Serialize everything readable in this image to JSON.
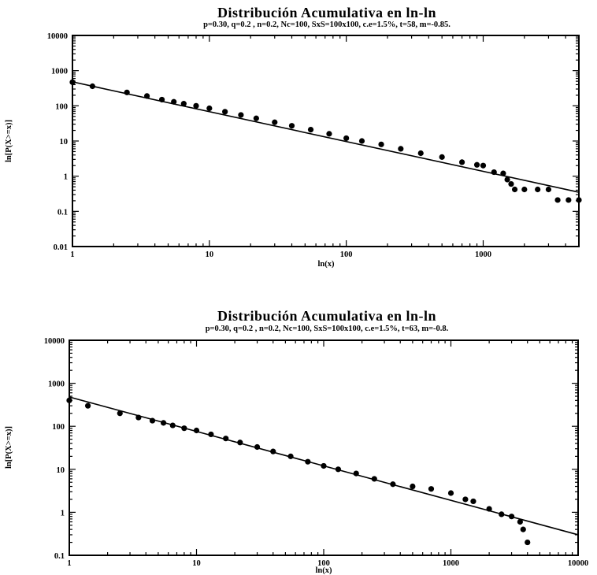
{
  "chart_data": [
    {
      "type": "scatter",
      "title": "Distribución Acumulativa en ln-ln",
      "subtitle": "p=0.30, q=0.2 , n=0.2, Nc=100, SxS=100x100, c.e=1.5%, t=58, m=-0.85.",
      "xlabel": "ln(x)",
      "ylabel": "ln[P(X>=x)]",
      "x_scale": "log",
      "y_scale": "log",
      "xlim": [
        1,
        5000
      ],
      "ylim": [
        0.01,
        10000
      ],
      "x_ticks": [
        1,
        10,
        100,
        1000
      ],
      "x_tick_labels": [
        "1",
        "10",
        "100",
        "1000"
      ],
      "y_ticks": [
        0.01,
        0.1,
        1,
        10,
        100,
        1000,
        10000
      ],
      "y_tick_labels": [
        "0.01",
        "0.1",
        "1",
        "10",
        "100",
        "1000",
        "10000"
      ],
      "grid": false,
      "legend": "none",
      "fit_line": {
        "slope": -0.85,
        "points": [
          [
            1,
            480
          ],
          [
            5000,
            0.35
          ]
        ]
      },
      "series": [
        {
          "points": [
            [
              1,
              470
            ],
            [
              1.4,
              360
            ],
            [
              2.5,
              240
            ],
            [
              3.5,
              190
            ],
            [
              4.5,
              150
            ],
            [
              5.5,
              130
            ],
            [
              6.5,
              115
            ],
            [
              8,
              100
            ],
            [
              10,
              85
            ],
            [
              13,
              68
            ],
            [
              17,
              55
            ],
            [
              22,
              44
            ],
            [
              30,
              34
            ],
            [
              40,
              27
            ],
            [
              55,
              21
            ],
            [
              75,
              16
            ],
            [
              100,
              12
            ],
            [
              130,
              10
            ],
            [
              180,
              8
            ],
            [
              250,
              6
            ],
            [
              350,
              4.5
            ],
            [
              500,
              3.5
            ],
            [
              700,
              2.5
            ],
            [
              900,
              2.1
            ],
            [
              1000,
              2
            ],
            [
              1200,
              1.3
            ],
            [
              1400,
              1.2
            ],
            [
              1500,
              0.8
            ],
            [
              1600,
              0.6
            ],
            [
              1700,
              0.42
            ],
            [
              2000,
              0.42
            ],
            [
              2500,
              0.42
            ],
            [
              3000,
              0.42
            ],
            [
              3500,
              0.21
            ],
            [
              4200,
              0.21
            ],
            [
              5000,
              0.21
            ]
          ]
        }
      ]
    },
    {
      "type": "scatter",
      "title": "Distribución Acumulativa en ln-ln",
      "subtitle": "p=0.30, q=0.2 , n=0.2, Nc=100, SxS=100x100, c.e=1.5%, t=63, m=-0.8.",
      "xlabel": "ln(x)",
      "ylabel": "ln[P(X>=x)]",
      "x_scale": "log",
      "y_scale": "log",
      "xlim": [
        1,
        10000
      ],
      "ylim": [
        0.1,
        10000
      ],
      "x_ticks": [
        1,
        10,
        100,
        1000,
        10000
      ],
      "x_tick_labels": [
        "1",
        "10",
        "100",
        "1000",
        "10000"
      ],
      "y_ticks": [
        0.1,
        1,
        10,
        100,
        1000,
        10000
      ],
      "y_tick_labels": [
        "0.1",
        "1",
        "10",
        "100",
        "1000",
        "10000"
      ],
      "grid": false,
      "legend": "none",
      "fit_line": {
        "slope": -0.8,
        "points": [
          [
            1,
            480
          ],
          [
            10000,
            0.3
          ]
        ]
      },
      "series": [
        {
          "points": [
            [
              1,
              400
            ],
            [
              1.4,
              300
            ],
            [
              2.5,
              200
            ],
            [
              3.5,
              160
            ],
            [
              4.5,
              135
            ],
            [
              5.5,
              120
            ],
            [
              6.5,
              105
            ],
            [
              8,
              90
            ],
            [
              10,
              80
            ],
            [
              13,
              65
            ],
            [
              17,
              52
            ],
            [
              22,
              42
            ],
            [
              30,
              33
            ],
            [
              40,
              26
            ],
            [
              55,
              20
            ],
            [
              75,
              15
            ],
            [
              100,
              12
            ],
            [
              130,
              10
            ],
            [
              180,
              8
            ],
            [
              250,
              6
            ],
            [
              350,
              4.5
            ],
            [
              500,
              4
            ],
            [
              700,
              3.5
            ],
            [
              1000,
              2.8
            ],
            [
              1300,
              2
            ],
            [
              1500,
              1.8
            ],
            [
              2000,
              1.2
            ],
            [
              2500,
              0.9
            ],
            [
              3000,
              0.8
            ],
            [
              3500,
              0.6
            ],
            [
              3700,
              0.4
            ],
            [
              4000,
              0.2
            ]
          ]
        }
      ]
    }
  ]
}
